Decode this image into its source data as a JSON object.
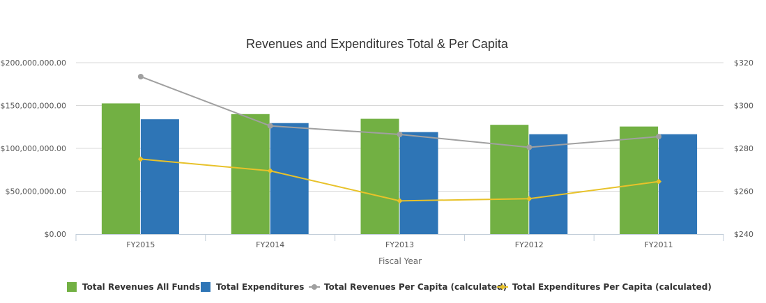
{
  "chart_data": {
    "type": "bar",
    "title": "Revenues and Expenditures Total & Per Capita",
    "xlabel": "Fiscal Year",
    "categories": [
      "FY2015",
      "FY2014",
      "FY2013",
      "FY2012",
      "FY2011"
    ],
    "y_left": {
      "min": 0,
      "max": 200000000,
      "ticks": [
        0,
        50000000,
        100000000,
        150000000,
        200000000
      ],
      "tick_labels": [
        "$0.00",
        "$50,000,000.00",
        "$100,000,000.00",
        "$150,000,000.00",
        "$200,000,000.00"
      ]
    },
    "y_right": {
      "min": 240,
      "max": 320,
      "ticks": [
        240,
        260,
        280,
        300,
        320
      ],
      "tick_labels": [
        "$240",
        "$260",
        "$280",
        "$300",
        "$320"
      ]
    },
    "grid": true,
    "legend_position": "bottom",
    "series": [
      {
        "name": "Total Revenues All Funds",
        "kind": "bar",
        "axis": "left",
        "color": "#72b043",
        "values": [
          152500000,
          140000000,
          134500000,
          127500000,
          125500000
        ]
      },
      {
        "name": "Total Expenditures",
        "kind": "bar",
        "axis": "left",
        "color": "#2e75b6",
        "values": [
          134000000,
          129500000,
          119000000,
          116500000,
          116500000
        ]
      },
      {
        "name": "Total Revenues Per Capita (calculated)",
        "kind": "line",
        "axis": "right",
        "color": "#a0a0a0",
        "marker": "circle",
        "values": [
          313.5,
          290.5,
          286.5,
          280.5,
          285.5
        ]
      },
      {
        "name": "Total Expenditures Per Capita (calculated)",
        "kind": "line",
        "axis": "right",
        "color": "#e8c22a",
        "marker": "diamond",
        "values": [
          275,
          269.5,
          255.5,
          256.5,
          264.5
        ]
      }
    ]
  }
}
